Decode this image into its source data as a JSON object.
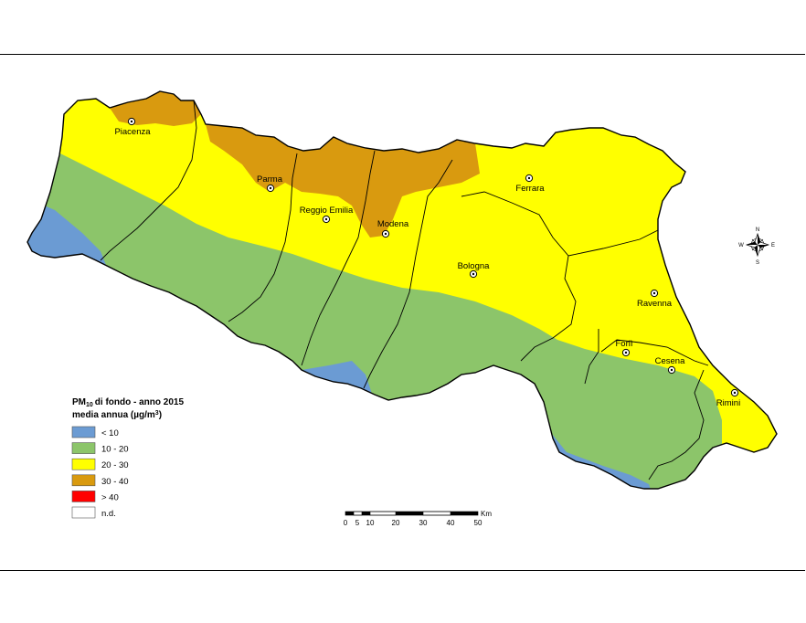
{
  "legend": {
    "title_prefix": "PM",
    "title_sub": "10",
    "title_suffix": "di fondo - anno 2015",
    "subtitle_prefix": "media annua (µg/m",
    "subtitle_sup": "3",
    "subtitle_suffix": ")",
    "classes": [
      {
        "label": "< 10",
        "color": "#6b9bd3"
      },
      {
        "label": "10 - 20",
        "color": "#8cc56a"
      },
      {
        "label": "20 - 30",
        "color": "#ffff00"
      },
      {
        "label": "30 - 40",
        "color": "#d99a0f"
      },
      {
        "label": "> 40",
        "color": "#ff0000"
      },
      {
        "label": "n.d.",
        "color": "#ffffff"
      }
    ]
  },
  "cities": [
    {
      "name": "Piacenza"
    },
    {
      "name": "Parma"
    },
    {
      "name": "Reggio Emilia"
    },
    {
      "name": "Modena"
    },
    {
      "name": "Ferrara"
    },
    {
      "name": "Bologna"
    },
    {
      "name": "Ravenna"
    },
    {
      "name": "Forlì"
    },
    {
      "name": "Cesena"
    },
    {
      "name": "Rimini"
    }
  ],
  "scalebar": {
    "unit": "Km",
    "ticks": [
      "0",
      "5",
      "10",
      "20",
      "30",
      "40",
      "50"
    ]
  },
  "compass": {
    "n": "N",
    "s": "S",
    "e": "E",
    "w": "W"
  }
}
